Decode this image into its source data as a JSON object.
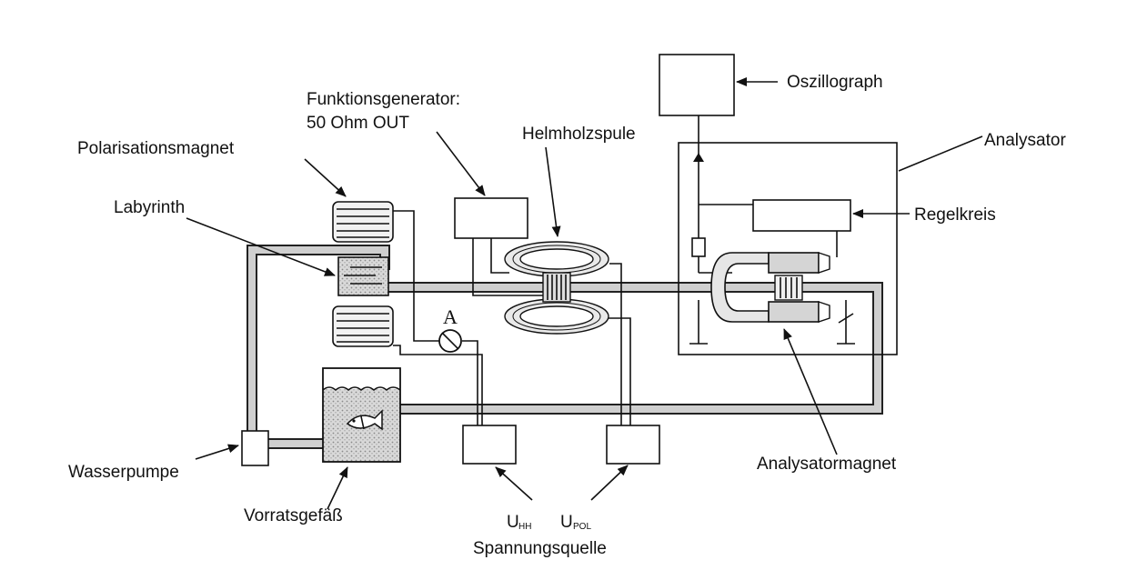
{
  "labels": {
    "funktionsgenerator_line1": "Funktionsgenerator:",
    "funktionsgenerator_line2": "50 Ohm OUT",
    "oszillograph": "Oszillograph",
    "analysator": "Analysator",
    "polarisationsmagnet": "Polarisationsmagnet",
    "helmholzspule": "Helmholzspule",
    "labyrinth": "Labyrinth",
    "regelkreis": "Regelkreis",
    "ammeter": "A",
    "wasserpumpe": "Wasserpumpe",
    "vorratsgefaess": "Vorratsgefäß",
    "analysatormagnet": "Analysatormagnet",
    "u_hh_main": "U",
    "u_hh_sub": "HH",
    "u_pol_main": "U",
    "u_pol_sub": "POL",
    "spannungsquelle": "Spannungsquelle"
  },
  "icons": {
    "fish": "fish-icon",
    "water_waves": "wave-icon"
  }
}
